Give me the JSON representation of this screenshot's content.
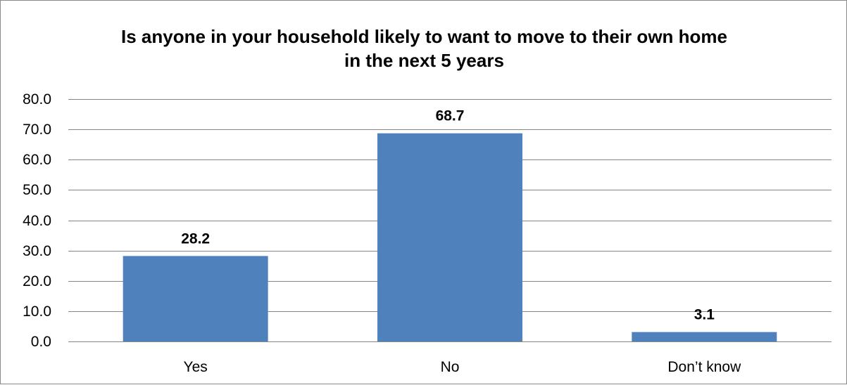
{
  "chart_data": {
    "type": "bar",
    "title_lines": [
      "Is anyone in your household likely to want to move to their own home",
      "in the next 5 years"
    ],
    "categories": [
      "Yes",
      "No",
      "Don’t know"
    ],
    "values": [
      28.2,
      68.7,
      3.1
    ],
    "data_labels": [
      "28.2",
      "68.7",
      "3.1"
    ],
    "ylim": [
      0,
      80
    ],
    "y_ticks": [
      0,
      10,
      20,
      30,
      40,
      50,
      60,
      70,
      80
    ],
    "y_tick_labels": [
      "0.0",
      "10.0",
      "20.0",
      "30.0",
      "40.0",
      "50.0",
      "60.0",
      "70.0",
      "80.0"
    ],
    "grid": true,
    "legend": "none",
    "bar_color": "#4f81bd",
    "grid_color": "#868686"
  }
}
